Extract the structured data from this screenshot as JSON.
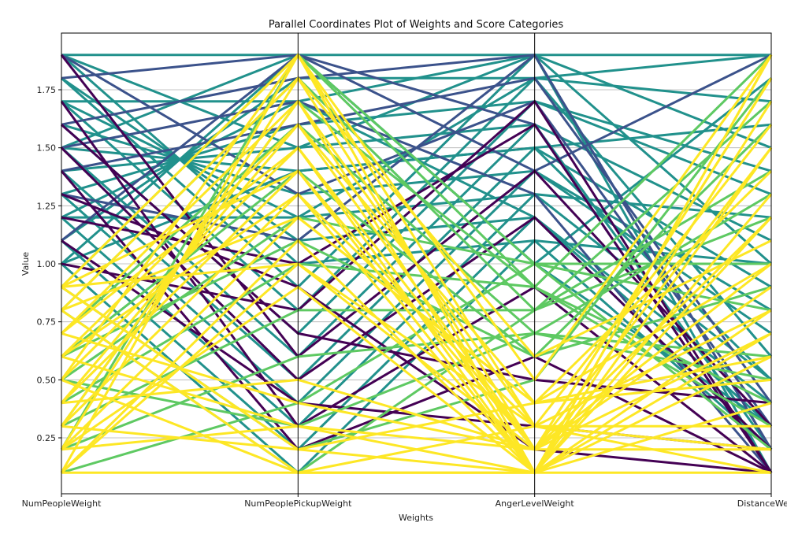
{
  "chart_data": {
    "type": "parallel-coordinates",
    "title": "Parallel Coordinates Plot of Weights and Score Categories",
    "xlabel": "Weights",
    "ylabel": "Value",
    "axes": [
      "NumPeopleWeight",
      "NumPeoplePickupWeight",
      "AngerLevelWeight",
      "DistanceWeight"
    ],
    "ylim": [
      0.0,
      2.0
    ],
    "yticks": [
      "0.25",
      "0.50",
      "0.75",
      "1.00",
      "1.25",
      "1.50",
      "1.75"
    ],
    "ytick_values": [
      0.25,
      0.5,
      0.75,
      1.0,
      1.25,
      1.5,
      1.75
    ],
    "grid": true,
    "colormap": "viridis",
    "category_colors": [
      "#fde725",
      "#5ec962",
      "#21918c",
      "#3b528b",
      "#440154"
    ],
    "lines": [
      [
        1.0,
        1.9,
        1.9,
        1.9,
        2
      ],
      [
        1.1,
        1.8,
        1.8,
        1.7,
        2
      ],
      [
        1.2,
        1.7,
        1.9,
        1.5,
        2
      ],
      [
        1.3,
        1.6,
        1.7,
        1.3,
        2
      ],
      [
        1.4,
        1.5,
        1.6,
        1.1,
        2
      ],
      [
        1.5,
        1.4,
        1.5,
        0.9,
        2
      ],
      [
        1.6,
        1.3,
        1.4,
        0.7,
        2
      ],
      [
        1.7,
        1.2,
        1.3,
        0.5,
        2
      ],
      [
        1.8,
        1.1,
        1.2,
        0.3,
        2
      ],
      [
        1.9,
        1.0,
        1.1,
        0.2,
        2
      ],
      [
        1.9,
        1.9,
        1.0,
        1.8,
        2
      ],
      [
        1.8,
        0.9,
        1.9,
        1.0,
        2
      ],
      [
        1.7,
        0.8,
        1.8,
        0.6,
        2
      ],
      [
        1.6,
        0.7,
        1.7,
        1.4,
        2
      ],
      [
        1.5,
        0.6,
        1.6,
        0.2,
        2
      ],
      [
        1.4,
        0.5,
        1.5,
        1.6,
        2
      ],
      [
        1.3,
        0.4,
        1.4,
        0.8,
        2
      ],
      [
        1.2,
        0.3,
        1.3,
        1.2,
        2
      ],
      [
        1.1,
        0.2,
        1.2,
        0.4,
        2
      ],
      [
        1.0,
        0.1,
        1.1,
        1.0,
        2
      ],
      [
        1.9,
        1.5,
        1.9,
        0.1,
        2
      ],
      [
        1.5,
        1.9,
        1.0,
        0.3,
        2
      ],
      [
        1.2,
        1.2,
        1.8,
        1.9,
        2
      ],
      [
        1.7,
        1.7,
        1.2,
        0.2,
        2
      ],
      [
        1.0,
        1.4,
        1.5,
        0.5,
        2
      ],
      [
        1.8,
        1.9,
        1.4,
        1.9,
        3
      ],
      [
        1.6,
        1.8,
        1.9,
        0.2,
        3
      ],
      [
        1.4,
        1.6,
        1.8,
        0.4,
        3
      ],
      [
        1.9,
        1.3,
        1.7,
        0.3,
        3
      ],
      [
        1.1,
        1.9,
        1.6,
        0.1,
        3
      ],
      [
        1.3,
        1.1,
        1.9,
        0.2,
        3
      ],
      [
        1.5,
        1.7,
        1.3,
        0.1,
        3
      ],
      [
        1.2,
        1.0,
        1.6,
        0.1,
        4
      ],
      [
        1.0,
        0.8,
        1.7,
        0.1,
        4
      ],
      [
        1.5,
        0.5,
        1.2,
        0.2,
        4
      ],
      [
        1.7,
        0.3,
        0.9,
        0.1,
        4
      ],
      [
        1.9,
        0.6,
        1.4,
        0.3,
        4
      ],
      [
        1.4,
        0.2,
        0.6,
        0.1,
        4
      ],
      [
        1.1,
        0.4,
        0.3,
        0.2,
        4
      ],
      [
        1.6,
        0.7,
        0.5,
        0.4,
        4
      ],
      [
        1.3,
        0.9,
        0.2,
        0.1,
        4
      ],
      [
        0.9,
        1.9,
        0.9,
        1.9,
        1
      ],
      [
        0.8,
        1.8,
        0.8,
        1.2,
        1
      ],
      [
        0.7,
        1.6,
        0.7,
        0.5,
        1
      ],
      [
        0.6,
        1.4,
        0.6,
        1.6,
        1
      ],
      [
        0.5,
        1.2,
        1.0,
        0.8,
        1
      ],
      [
        0.4,
        1.0,
        0.9,
        0.3,
        1
      ],
      [
        0.3,
        0.8,
        0.8,
        1.4,
        1
      ],
      [
        0.2,
        0.6,
        0.7,
        0.6,
        1
      ],
      [
        0.1,
        0.4,
        1.0,
        1.0,
        1
      ],
      [
        0.9,
        0.2,
        0.5,
        1.8,
        1
      ],
      [
        0.6,
        1.1,
        0.6,
        0.9,
        1
      ],
      [
        0.3,
        1.7,
        0.9,
        0.4,
        1
      ],
      [
        0.8,
        0.1,
        0.8,
        1.7,
        1
      ],
      [
        0.5,
        0.3,
        0.7,
        1.3,
        1
      ],
      [
        0.2,
        1.9,
        1.0,
        0.2,
        1
      ],
      [
        0.9,
        1.9,
        0.1,
        1.9,
        0
      ],
      [
        0.8,
        1.8,
        0.2,
        1.8,
        0
      ],
      [
        0.7,
        1.7,
        0.3,
        1.6,
        0
      ],
      [
        0.6,
        1.6,
        0.4,
        1.4,
        0
      ],
      [
        0.5,
        1.5,
        0.1,
        1.2,
        0
      ],
      [
        0.4,
        1.4,
        0.2,
        1.0,
        0
      ],
      [
        0.3,
        1.3,
        0.3,
        0.8,
        0
      ],
      [
        0.2,
        1.2,
        0.4,
        0.6,
        0
      ],
      [
        0.1,
        1.1,
        0.1,
        0.4,
        0
      ],
      [
        0.9,
        1.0,
        0.2,
        0.2,
        0
      ],
      [
        0.1,
        1.9,
        0.5,
        1.9,
        0
      ],
      [
        0.2,
        1.8,
        0.6,
        1.1,
        0
      ],
      [
        0.3,
        1.7,
        0.1,
        0.7,
        0
      ],
      [
        0.4,
        1.6,
        0.2,
        1.5,
        0
      ],
      [
        0.5,
        1.9,
        0.3,
        0.3,
        0
      ],
      [
        0.6,
        1.3,
        0.1,
        1.7,
        0
      ],
      [
        0.7,
        1.5,
        0.2,
        0.9,
        0
      ],
      [
        0.8,
        1.2,
        0.4,
        0.5,
        0
      ],
      [
        0.9,
        1.4,
        0.1,
        1.3,
        0
      ],
      [
        0.1,
        1.0,
        0.3,
        0.1,
        0
      ],
      [
        0.2,
        0.9,
        0.1,
        1.9,
        0
      ],
      [
        0.4,
        0.5,
        0.2,
        0.7,
        0
      ],
      [
        0.6,
        0.3,
        0.1,
        0.6,
        0
      ],
      [
        0.8,
        0.1,
        0.3,
        0.2,
        0
      ],
      [
        0.3,
        0.2,
        0.4,
        1.0,
        0
      ],
      [
        0.5,
        0.1,
        0.1,
        0.8,
        0
      ],
      [
        0.7,
        0.4,
        0.2,
        1.2,
        0
      ],
      [
        0.1,
        0.1,
        0.1,
        0.1,
        0
      ],
      [
        0.9,
        0.2,
        0.1,
        1.5,
        0
      ],
      [
        0.2,
        0.3,
        0.2,
        1.8,
        0
      ]
    ]
  }
}
